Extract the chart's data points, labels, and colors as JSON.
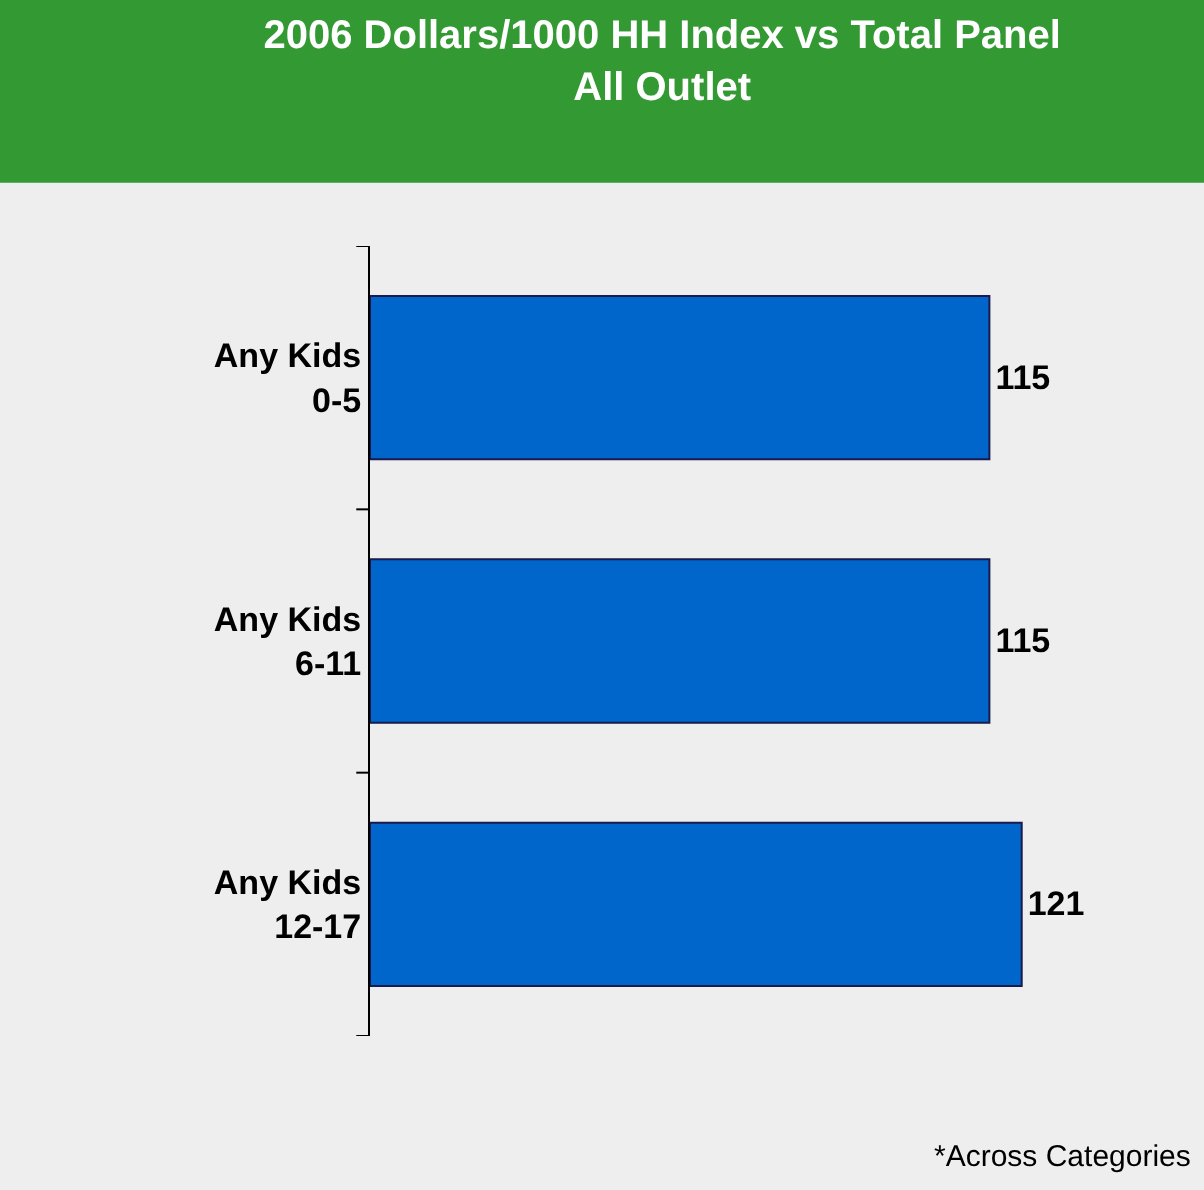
{
  "chart_data": {
    "type": "bar",
    "orientation": "horizontal",
    "title": "2006 Dollars/1000 HH Index vs Total Panel\nAll Outlet",
    "categories": [
      "Any Kids\n0-5",
      "Any Kids\n6-11",
      "Any Kids\n12-17"
    ],
    "values": [
      115,
      115,
      121
    ],
    "color": "#0066cc",
    "data_labels": true,
    "legend": false,
    "annotations": [
      "*Across Categories"
    ]
  }
}
